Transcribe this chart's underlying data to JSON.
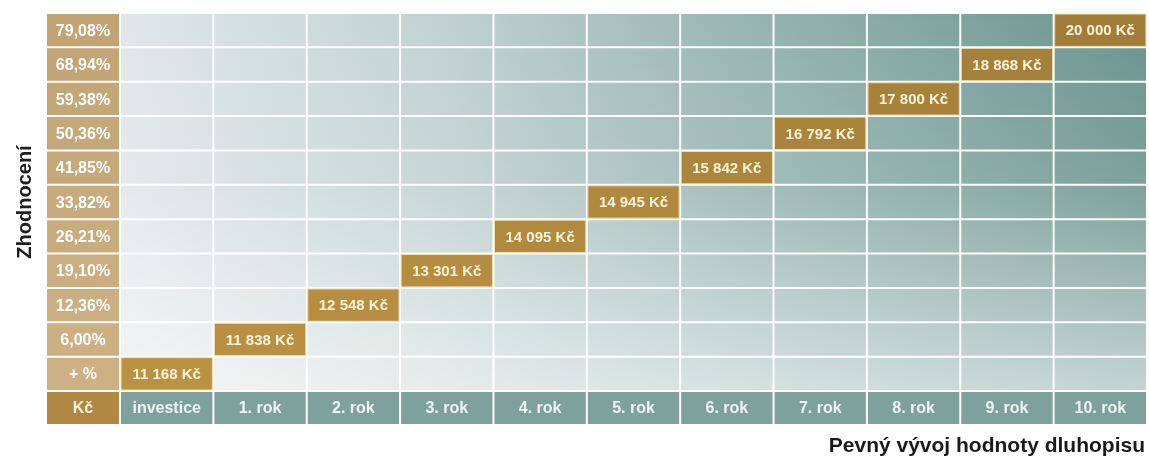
{
  "chart_data": {
    "type": "heatmap",
    "xlabel": "Pevný vývoj hodnoty dluhopisu",
    "ylabel": "Zhodnocení",
    "categories": [
      "investice",
      "1. rok",
      "2. rok",
      "3. rok",
      "4. rok",
      "5. rok",
      "6. rok",
      "7. rok",
      "8. rok",
      "9. rok",
      "10. rok"
    ],
    "y_categories": [
      "79,08%",
      "68,94%",
      "59,38%",
      "50,36%",
      "41,85%",
      "33,82%",
      "26,21%",
      "19,10%",
      "12,36%",
      "6,00%",
      "+ %"
    ],
    "cells": [
      [
        null,
        null,
        null,
        null,
        null,
        null,
        null,
        null,
        null,
        null,
        20000
      ],
      [
        null,
        null,
        null,
        null,
        null,
        null,
        null,
        null,
        null,
        18868,
        null
      ],
      [
        null,
        null,
        null,
        null,
        null,
        null,
        null,
        null,
        17800,
        null,
        null
      ],
      [
        null,
        null,
        null,
        null,
        null,
        null,
        null,
        16792,
        null,
        null,
        null
      ],
      [
        null,
        null,
        null,
        null,
        null,
        null,
        15842,
        null,
        null,
        null,
        null
      ],
      [
        null,
        null,
        null,
        null,
        null,
        14945,
        null,
        null,
        null,
        null,
        null
      ],
      [
        null,
        null,
        null,
        null,
        14095,
        null,
        null,
        null,
        null,
        null,
        null
      ],
      [
        null,
        null,
        null,
        13301,
        null,
        null,
        null,
        null,
        null,
        null,
        null
      ],
      [
        null,
        null,
        12548,
        null,
        null,
        null,
        null,
        null,
        null,
        null,
        null
      ],
      [
        null,
        11838,
        null,
        null,
        null,
        null,
        null,
        null,
        null,
        null,
        null
      ],
      [
        11168,
        null,
        null,
        null,
        null,
        null,
        null,
        null,
        null,
        null,
        null
      ]
    ],
    "cell_labels": [
      [
        null,
        null,
        null,
        null,
        null,
        null,
        null,
        null,
        null,
        null,
        "20 000 Kč"
      ],
      [
        null,
        null,
        null,
        null,
        null,
        null,
        null,
        null,
        null,
        "18 868 Kč",
        null
      ],
      [
        null,
        null,
        null,
        null,
        null,
        null,
        null,
        null,
        "17 800 Kč",
        null,
        null
      ],
      [
        null,
        null,
        null,
        null,
        null,
        null,
        null,
        "16 792 Kč",
        null,
        null,
        null
      ],
      [
        null,
        null,
        null,
        null,
        null,
        null,
        "15 842 Kč",
        null,
        null,
        null,
        null
      ],
      [
        null,
        null,
        null,
        null,
        null,
        "14 945 Kč",
        null,
        null,
        null,
        null,
        null
      ],
      [
        null,
        null,
        null,
        null,
        "14 095 Kč",
        null,
        null,
        null,
        null,
        null,
        null
      ],
      [
        null,
        null,
        null,
        "13 301 Kč",
        null,
        null,
        null,
        null,
        null,
        null,
        null
      ],
      [
        null,
        null,
        "12 548 Kč",
        null,
        null,
        null,
        null,
        null,
        null,
        null,
        null
      ],
      [
        null,
        "11 838 Kč",
        null,
        null,
        null,
        null,
        null,
        null,
        null,
        null,
        null
      ],
      [
        "11 168 Kč",
        null,
        null,
        null,
        null,
        null,
        null,
        null,
        null,
        null,
        null
      ]
    ],
    "color": "#b38b3f",
    "grid": true,
    "annotations": [
      "Kč"
    ]
  }
}
